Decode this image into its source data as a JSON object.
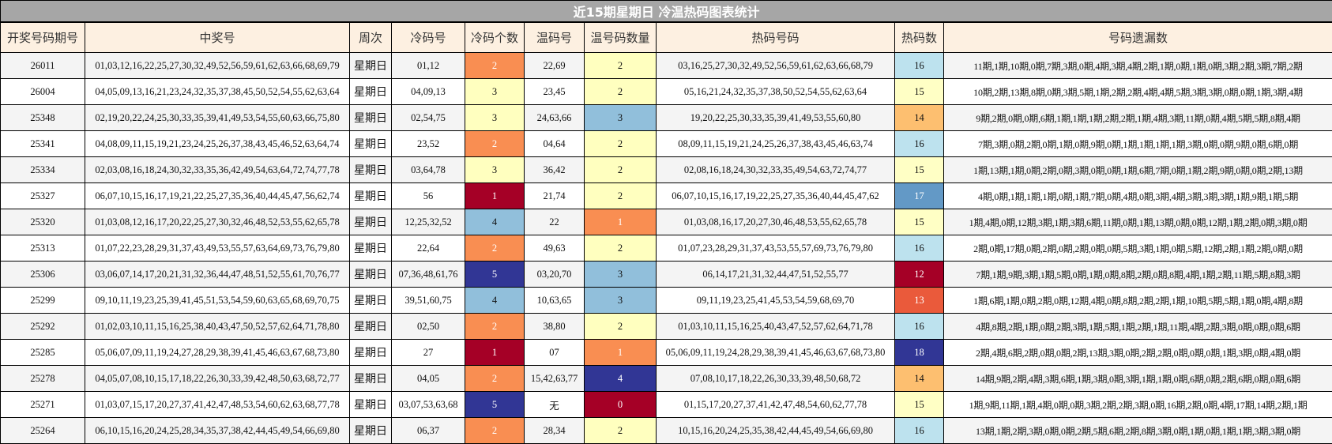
{
  "title": "近15期星期日 冷温热码图表统计",
  "headers": [
    "开奖号码期号",
    "中奖号",
    "周次",
    "冷码号",
    "冷码个数",
    "温码号",
    "温号码数量",
    "热码号码",
    "热码数",
    "号码遗漏数"
  ],
  "colors": {
    "dark_red": "#a50026",
    "orange": "#f98e52",
    "yellow": "#ffffbf",
    "light_blue": "#91bfdb",
    "navy": "#313695",
    "hot_12": "#a50026",
    "hot_13": "#ea5a3b",
    "hot_14": "#fdbf70",
    "hot_15": "#ffffc5",
    "hot_16": "#bde2ee",
    "hot_17": "#6399c6",
    "hot_18": "#313695"
  },
  "rows": [
    {
      "issue": "26011",
      "numbers": "01,03,12,16,22,25,27,30,32,49,52,56,59,61,62,63,66,68,69,79",
      "week": "星期日",
      "cold": "01,12",
      "cold_count": "2",
      "cold_color": "#f98e52",
      "cold_text": "#fff",
      "warm": "22,69",
      "warm_count": "2",
      "warm_color": "#ffffbf",
      "warm_text": "#111",
      "hot": "03,16,25,27,30,32,49,52,56,59,61,62,63,66,68,79",
      "hot_count": "16",
      "hot_color": "#bde2ee",
      "hot_text": "#111",
      "missing": "11期,1期,10期,0期,7期,3期,0期,4期,3期,4期,2期,1期,0期,1期,0期,3期,2期,3期,7期,2期"
    },
    {
      "issue": "26004",
      "numbers": "04,05,09,13,16,21,23,24,32,35,37,38,45,50,52,54,55,62,63,64",
      "week": "星期日",
      "cold": "04,09,13",
      "cold_count": "3",
      "cold_color": "#ffffbf",
      "cold_text": "#111",
      "warm": "23,45",
      "warm_count": "2",
      "warm_color": "#ffffbf",
      "warm_text": "#111",
      "hot": "05,16,21,24,32,35,37,38,50,52,54,55,62,63,64",
      "hot_count": "15",
      "hot_color": "#ffffc5",
      "hot_text": "#111",
      "missing": "10期,2期,13期,8期,0期,3期,5期,1期,2期,2期,4期,4期,5期,3期,3期,0期,0期,1期,3期,4期"
    },
    {
      "issue": "25348",
      "numbers": "02,19,20,22,24,25,30,33,35,39,41,49,53,54,55,60,63,66,75,80",
      "week": "星期日",
      "cold": "02,54,75",
      "cold_count": "3",
      "cold_color": "#ffffbf",
      "cold_text": "#111",
      "warm": "24,63,66",
      "warm_count": "3",
      "warm_color": "#91bfdb",
      "warm_text": "#111",
      "hot": "19,20,22,25,30,33,35,39,41,49,53,55,60,80",
      "hot_count": "14",
      "hot_color": "#fdbf70",
      "hot_text": "#111",
      "missing": "9期,2期,0期,0期,6期,1期,1期,1期,2期,2期,1期,4期,3期,11期,0期,4期,5期,5期,8期,4期"
    },
    {
      "issue": "25341",
      "numbers": "04,08,09,11,15,19,21,23,24,25,26,37,38,43,45,46,52,63,64,74",
      "week": "星期日",
      "cold": "23,52",
      "cold_count": "2",
      "cold_color": "#f98e52",
      "cold_text": "#fff",
      "warm": "04,64",
      "warm_count": "2",
      "warm_color": "#ffffbf",
      "warm_text": "#111",
      "hot": "08,09,11,15,19,21,24,25,26,37,38,43,45,46,63,74",
      "hot_count": "16",
      "hot_color": "#bde2ee",
      "hot_text": "#111",
      "missing": "7期,3期,0期,2期,0期,1期,0期,9期,0期,1期,1期,1期,1期,3期,0期,0期,9期,0期,6期,0期"
    },
    {
      "issue": "25334",
      "numbers": "02,03,08,16,18,24,30,32,33,35,36,42,49,54,63,64,72,74,77,78",
      "week": "星期日",
      "cold": "03,64,78",
      "cold_count": "3",
      "cold_color": "#ffffbf",
      "cold_text": "#111",
      "warm": "36,42",
      "warm_count": "2",
      "warm_color": "#ffffbf",
      "warm_text": "#111",
      "hot": "02,08,16,18,24,30,32,33,35,49,54,63,72,74,77",
      "hot_count": "15",
      "hot_color": "#ffffc5",
      "hot_text": "#111",
      "missing": "1期,13期,1期,0期,2期,0期,3期,0期,0期,1期,6期,7期,0期,1期,2期,9期,0期,0期,2期,13期"
    },
    {
      "issue": "25327",
      "numbers": "06,07,10,15,16,17,19,21,22,25,27,35,36,40,44,45,47,56,62,74",
      "week": "星期日",
      "cold": "56",
      "cold_count": "1",
      "cold_color": "#a50026",
      "cold_text": "#fff",
      "warm": "21,74",
      "warm_count": "2",
      "warm_color": "#ffffbf",
      "warm_text": "#111",
      "hot": "06,07,10,15,16,17,19,22,25,27,35,36,40,44,45,47,62",
      "hot_count": "17",
      "hot_color": "#6399c6",
      "hot_text": "#fff",
      "missing": "4期,0期,1期,1期,1期,0期,1期,7期,0期,4期,0期,3期,4期,3期,3期,3期,1期,9期,1期,5期"
    },
    {
      "issue": "25320",
      "numbers": "01,03,08,12,16,17,20,22,25,27,30,32,46,48,52,53,55,62,65,78",
      "week": "星期日",
      "cold": "12,25,32,52",
      "cold_count": "4",
      "cold_color": "#91bfdb",
      "cold_text": "#111",
      "warm": "22",
      "warm_count": "1",
      "warm_color": "#f98e52",
      "warm_text": "#fff",
      "hot": "01,03,08,16,17,20,27,30,46,48,53,55,62,65,78",
      "hot_count": "15",
      "hot_color": "#ffffc5",
      "hot_text": "#111",
      "missing": "1期,4期,0期,12期,3期,1期,3期,6期,11期,0期,1期,13期,0期,0期,12期,1期,2期,0期,3期,0期"
    },
    {
      "issue": "25313",
      "numbers": "01,07,22,23,28,29,31,37,43,49,53,55,57,63,64,69,73,76,79,80",
      "week": "星期日",
      "cold": "22,64",
      "cold_count": "2",
      "cold_color": "#f98e52",
      "cold_text": "#fff",
      "warm": "49,63",
      "warm_count": "2",
      "warm_color": "#ffffbf",
      "warm_text": "#111",
      "hot": "01,07,23,28,29,31,37,43,53,55,57,69,73,76,79,80",
      "hot_count": "16",
      "hot_color": "#bde2ee",
      "hot_text": "#111",
      "missing": "2期,0期,17期,0期,2期,0期,2期,0期,0期,5期,3期,1期,0期,5期,12期,2期,1期,2期,0期,0期"
    },
    {
      "issue": "25306",
      "numbers": "03,06,07,14,17,20,21,31,32,36,44,47,48,51,52,55,61,70,76,77",
      "week": "星期日",
      "cold": "07,36,48,61,76",
      "cold_count": "5",
      "cold_color": "#313695",
      "cold_text": "#fff",
      "warm": "03,20,70",
      "warm_count": "3",
      "warm_color": "#91bfdb",
      "warm_text": "#111",
      "hot": "06,14,17,21,31,32,44,47,51,52,55,77",
      "hot_count": "12",
      "hot_color": "#a50026",
      "hot_text": "#fff",
      "missing": "7期,1期,9期,3期,1期,5期,0期,1期,0期,8期,2期,0期,8期,4期,1期,2期,11期,5期,8期,3期"
    },
    {
      "issue": "25299",
      "numbers": "09,10,11,19,23,25,39,41,45,51,53,54,59,60,63,65,68,69,70,75",
      "week": "星期日",
      "cold": "39,51,60,75",
      "cold_count": "4",
      "cold_color": "#91bfdb",
      "cold_text": "#111",
      "warm": "10,63,65",
      "warm_count": "3",
      "warm_color": "#91bfdb",
      "warm_text": "#111",
      "hot": "09,11,19,23,25,41,45,53,54,59,68,69,70",
      "hot_count": "13",
      "hot_color": "#ea5a3b",
      "hot_text": "#fff",
      "missing": "1期,6期,1期,0期,2期,0期,12期,4期,0期,8期,2期,2期,1期,10期,5期,5期,1期,0期,4期,8期"
    },
    {
      "issue": "25292",
      "numbers": "01,02,03,10,11,15,16,25,38,40,43,47,50,52,57,62,64,71,78,80",
      "week": "星期日",
      "cold": "02,50",
      "cold_count": "2",
      "cold_color": "#f98e52",
      "cold_text": "#fff",
      "warm": "38,80",
      "warm_count": "2",
      "warm_color": "#ffffbf",
      "warm_text": "#111",
      "hot": "01,03,10,11,15,16,25,40,43,47,52,57,62,64,71,78",
      "hot_count": "16",
      "hot_color": "#bde2ee",
      "hot_text": "#111",
      "missing": "4期,8期,2期,1期,0期,2期,3期,1期,5期,1期,2期,1期,11期,4期,2期,3期,0期,0期,0期,6期"
    },
    {
      "issue": "25285",
      "numbers": "05,06,07,09,11,19,24,27,28,29,38,39,41,45,46,63,67,68,73,80",
      "week": "星期日",
      "cold": "27",
      "cold_count": "1",
      "cold_color": "#a50026",
      "cold_text": "#fff",
      "warm": "07",
      "warm_count": "1",
      "warm_color": "#f98e52",
      "warm_text": "#fff",
      "hot": "05,06,09,11,19,24,28,29,38,39,41,45,46,63,67,68,73,80",
      "hot_count": "18",
      "hot_color": "#313695",
      "hot_text": "#fff",
      "missing": "2期,4期,6期,2期,0期,0期,2期,13期,3期,0期,2期,2期,0期,0期,0期,1期,3期,0期,4期,0期"
    },
    {
      "issue": "25278",
      "numbers": "04,05,07,08,10,15,17,18,22,26,30,33,39,42,48,50,63,68,72,77",
      "week": "星期日",
      "cold": "04,05",
      "cold_count": "2",
      "cold_color": "#f98e52",
      "cold_text": "#fff",
      "warm": "15,42,63,77",
      "warm_count": "4",
      "warm_color": "#313695",
      "warm_text": "#fff",
      "hot": "07,08,10,17,18,22,26,30,33,39,48,50,68,72",
      "hot_count": "14",
      "hot_color": "#fdbf70",
      "hot_text": "#111",
      "missing": "14期,9期,2期,4期,3期,6期,1期,3期,0期,3期,1期,1期,0期,6期,0期,2期,6期,0期,0期,6期"
    },
    {
      "issue": "25271",
      "numbers": "01,03,07,15,17,20,27,37,41,42,47,48,53,54,60,62,63,68,77,78",
      "week": "星期日",
      "cold": "03,07,53,63,68",
      "cold_count": "5",
      "cold_color": "#313695",
      "cold_text": "#fff",
      "warm": "无",
      "warm_count": "0",
      "warm_color": "#a50026",
      "warm_text": "#fff",
      "hot": "01,15,17,20,27,37,41,42,47,48,54,60,62,77,78",
      "hot_count": "15",
      "hot_color": "#ffffc5",
      "hot_text": "#111",
      "missing": "1期,9期,11期,1期,4期,0期,0期,3期,2期,2期,3期,0期,16期,2期,0期,4期,17期,14期,2期,1期"
    },
    {
      "issue": "25264",
      "numbers": "06,10,15,16,20,24,25,28,34,35,37,38,42,44,45,49,54,66,69,80",
      "week": "星期日",
      "cold": "06,37",
      "cold_count": "2",
      "cold_color": "#f98e52",
      "cold_text": "#fff",
      "warm": "28,34",
      "warm_count": "2",
      "warm_color": "#ffffbf",
      "warm_text": "#111",
      "hot": "10,15,16,20,24,25,35,38,42,44,45,49,54,66,69,80",
      "hot_count": "16",
      "hot_color": "#bde2ee",
      "hot_text": "#111",
      "missing": "13期,1期,2期,3期,0期,0期,2期,5期,6期,2期,8期,3期,0期,1期,0期,1期,1期,3期,3期,0期"
    }
  ]
}
